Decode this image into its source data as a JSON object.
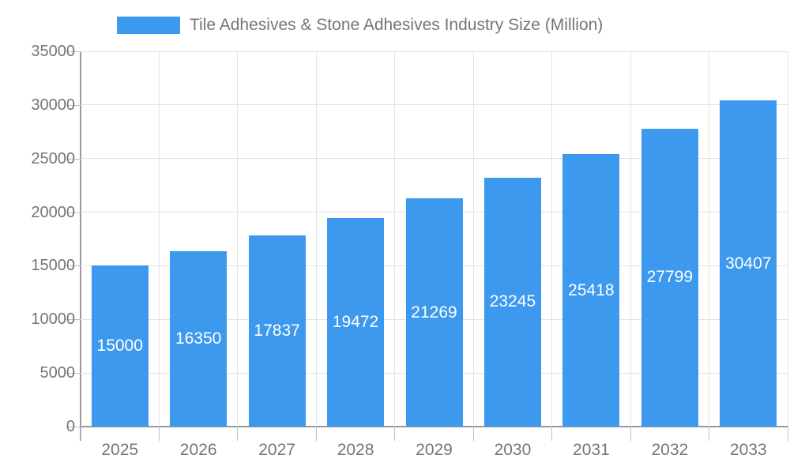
{
  "legend": {
    "label": "Tile Adhesives & Stone Adhesives Industry Size (Million)"
  },
  "chart_data": {
    "type": "bar",
    "title": "Tile Adhesives & Stone Adhesives Industry Size (Million)",
    "categories": [
      "2025",
      "2026",
      "2027",
      "2028",
      "2029",
      "2030",
      "2031",
      "2032",
      "2033"
    ],
    "values": [
      15000,
      16350,
      17837,
      19472,
      21269,
      23245,
      25418,
      27799,
      30407
    ],
    "xlabel": "",
    "ylabel": "",
    "ylim": [
      0,
      35000
    ],
    "ytick_step": 5000,
    "ytick_labels": [
      "0",
      "5000",
      "10000",
      "15000",
      "20000",
      "25000",
      "30000",
      "35000"
    ],
    "grid": true,
    "legend_position": "top",
    "bar_labels_visible": true,
    "colors": {
      "bar": "#3d99ee",
      "bar_label_text": "#ffffff",
      "axis_text": "#757575",
      "legend_text": "#757575",
      "gridline": "#e3e3e3",
      "axis_line": "#9a9a9a",
      "tick": "#c0c0c0",
      "background": "#ffffff"
    }
  }
}
